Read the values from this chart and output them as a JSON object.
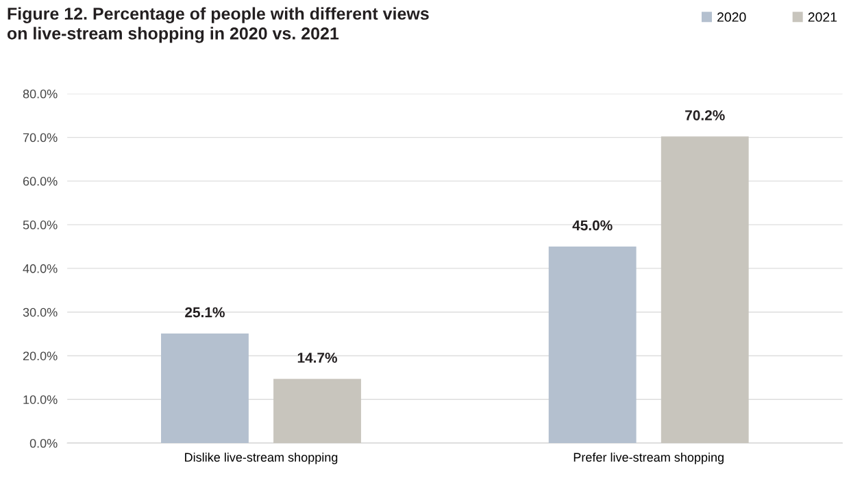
{
  "chart_data": {
    "type": "bar",
    "title": "Figure 12. Percentage of people with different views\non live-stream shopping in 2020 vs. 2021",
    "categories": [
      "Dislike live-stream shopping",
      "Prefer live-stream shopping"
    ],
    "series": [
      {
        "name": "2020",
        "color": "#b4c0cf",
        "values": [
          25.1,
          45.0
        ],
        "value_labels": [
          "25.1%",
          "45.0%"
        ]
      },
      {
        "name": "2021",
        "color": "#c8c5bd",
        "values": [
          14.7,
          70.2
        ],
        "value_labels": [
          "14.7%",
          "70.2%"
        ]
      }
    ],
    "ylim": [
      0,
      80
    ],
    "yticks": [
      {
        "value": 0,
        "label": "0.0%"
      },
      {
        "value": 10,
        "label": "10.0%"
      },
      {
        "value": 20,
        "label": "20.0%"
      },
      {
        "value": 30,
        "label": "30.0%"
      },
      {
        "value": 40,
        "label": "40.0%"
      },
      {
        "value": 50,
        "label": "50.0%"
      },
      {
        "value": 60,
        "label": "60.0%"
      },
      {
        "value": 70,
        "label": "70.0%"
      },
      {
        "value": 80,
        "label": "80.0%"
      }
    ],
    "grid": "y",
    "legend": "top right"
  }
}
